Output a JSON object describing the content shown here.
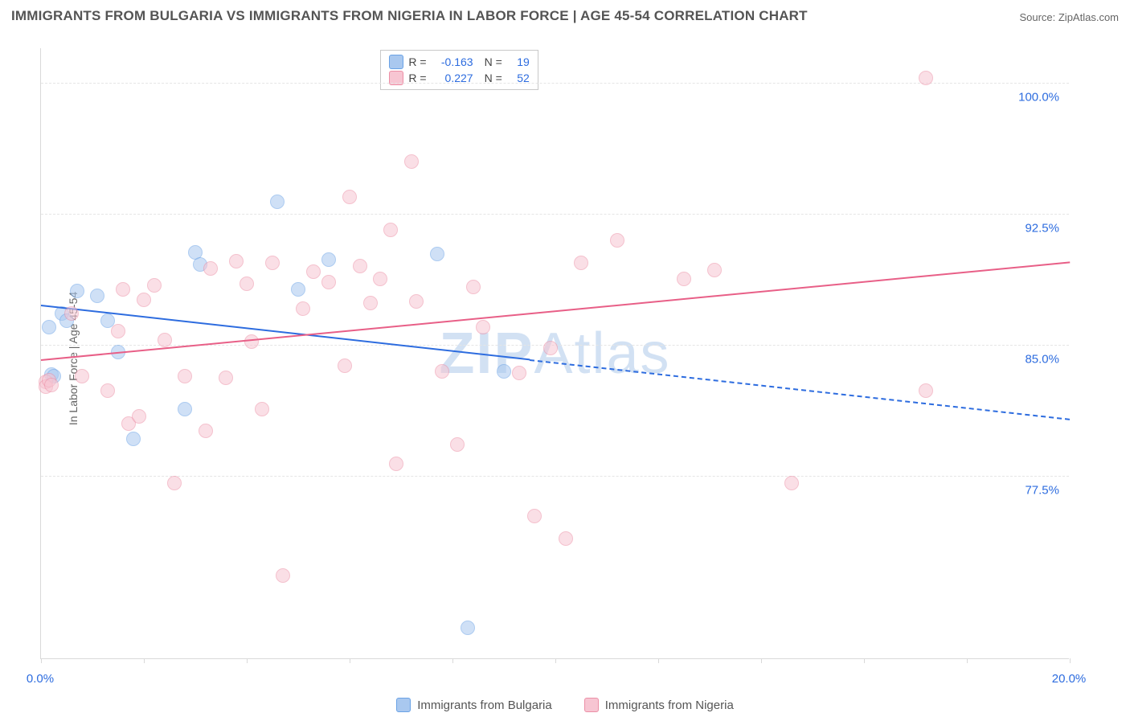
{
  "title": "IMMIGRANTS FROM BULGARIA VS IMMIGRANTS FROM NIGERIA IN LABOR FORCE | AGE 45-54 CORRELATION CHART",
  "source_label": "Source: ZipAtlas.com",
  "y_axis_label": "In Labor Force | Age 45-54",
  "watermark_text": "ZIPAtlas",
  "chart": {
    "type": "scatter",
    "background_color": "#ffffff",
    "grid_color": "#e5e5e5",
    "axis_color": "#d9d9d9",
    "tick_label_color": "#2d6cdf",
    "tick_fontsize": 15,
    "xlim": [
      0.0,
      20.0
    ],
    "ylim": [
      67.0,
      102.0
    ],
    "marker_radius": 9,
    "marker_stroke_width": 1.5,
    "y_gridlines": [
      77.5,
      85.0,
      92.5,
      100.0
    ],
    "y_tick_labels": [
      "77.5%",
      "85.0%",
      "92.5%",
      "100.0%"
    ],
    "x_ticks": [
      0.0,
      2.0,
      4.0,
      6.0,
      8.0,
      10.0,
      12.0,
      14.0,
      16.0,
      18.0,
      20.0
    ],
    "x_tick_labels_shown": {
      "0.0": "0.0%",
      "20.0": "20.0%"
    },
    "series": [
      {
        "id": "bulgaria",
        "label": "Immigrants from Bulgaria",
        "fill_color": "#a9c8ef",
        "stroke_color": "#6aa2e6",
        "fill_opacity": 0.55,
        "reg_color": "#2d6cdf",
        "R": "-0.163",
        "N": "19",
        "regline": {
          "x1": 0.0,
          "y1": 87.3,
          "x2": 9.5,
          "y2": 84.2,
          "dashed_to_x": 20.0,
          "dashed_to_y": 80.8
        },
        "points": [
          {
            "x": 0.15,
            "y": 86.0
          },
          {
            "x": 0.2,
            "y": 83.3
          },
          {
            "x": 0.25,
            "y": 83.2
          },
          {
            "x": 0.4,
            "y": 86.8
          },
          {
            "x": 0.5,
            "y": 86.4
          },
          {
            "x": 0.7,
            "y": 88.1
          },
          {
            "x": 1.1,
            "y": 87.8
          },
          {
            "x": 1.3,
            "y": 86.4
          },
          {
            "x": 1.5,
            "y": 84.6
          },
          {
            "x": 1.8,
            "y": 79.6
          },
          {
            "x": 2.8,
            "y": 81.3
          },
          {
            "x": 3.0,
            "y": 90.3
          },
          {
            "x": 3.1,
            "y": 89.6
          },
          {
            "x": 4.6,
            "y": 93.2
          },
          {
            "x": 5.0,
            "y": 88.2
          },
          {
            "x": 5.6,
            "y": 89.9
          },
          {
            "x": 7.7,
            "y": 90.2
          },
          {
            "x": 8.3,
            "y": 68.8
          },
          {
            "x": 9.0,
            "y": 83.5
          }
        ]
      },
      {
        "id": "nigeria",
        "label": "Immigrants from Nigeria",
        "fill_color": "#f7c5d2",
        "stroke_color": "#ec8fa6",
        "fill_opacity": 0.55,
        "reg_color": "#e85f87",
        "R": "0.227",
        "N": "52",
        "regline": {
          "x1": 0.0,
          "y1": 84.2,
          "x2": 20.0,
          "y2": 89.8,
          "dashed_to_x": null,
          "dashed_to_y": null
        },
        "points": [
          {
            "x": 0.1,
            "y": 82.9
          },
          {
            "x": 0.1,
            "y": 82.6
          },
          {
            "x": 0.15,
            "y": 83.0
          },
          {
            "x": 0.2,
            "y": 82.7
          },
          {
            "x": 0.6,
            "y": 86.8
          },
          {
            "x": 0.8,
            "y": 83.2
          },
          {
            "x": 1.3,
            "y": 82.4
          },
          {
            "x": 1.5,
            "y": 85.8
          },
          {
            "x": 1.6,
            "y": 88.2
          },
          {
            "x": 1.7,
            "y": 80.5
          },
          {
            "x": 1.9,
            "y": 80.9
          },
          {
            "x": 2.0,
            "y": 87.6
          },
          {
            "x": 2.2,
            "y": 88.4
          },
          {
            "x": 2.4,
            "y": 85.3
          },
          {
            "x": 2.6,
            "y": 77.1
          },
          {
            "x": 2.8,
            "y": 83.2
          },
          {
            "x": 3.2,
            "y": 80.1
          },
          {
            "x": 3.3,
            "y": 89.4
          },
          {
            "x": 3.6,
            "y": 83.1
          },
          {
            "x": 3.8,
            "y": 89.8
          },
          {
            "x": 4.0,
            "y": 88.5
          },
          {
            "x": 4.1,
            "y": 85.2
          },
          {
            "x": 4.3,
            "y": 81.3
          },
          {
            "x": 4.5,
            "y": 89.7
          },
          {
            "x": 4.7,
            "y": 71.8
          },
          {
            "x": 5.1,
            "y": 87.1
          },
          {
            "x": 5.3,
            "y": 89.2
          },
          {
            "x": 5.6,
            "y": 88.6
          },
          {
            "x": 5.9,
            "y": 83.8
          },
          {
            "x": 6.0,
            "y": 93.5
          },
          {
            "x": 6.2,
            "y": 89.5
          },
          {
            "x": 6.4,
            "y": 87.4
          },
          {
            "x": 6.6,
            "y": 88.8
          },
          {
            "x": 6.8,
            "y": 91.6
          },
          {
            "x": 6.9,
            "y": 78.2
          },
          {
            "x": 7.2,
            "y": 95.5
          },
          {
            "x": 7.3,
            "y": 87.5
          },
          {
            "x": 7.8,
            "y": 83.5
          },
          {
            "x": 8.1,
            "y": 79.3
          },
          {
            "x": 8.4,
            "y": 88.3
          },
          {
            "x": 8.6,
            "y": 86.0
          },
          {
            "x": 9.3,
            "y": 83.4
          },
          {
            "x": 9.6,
            "y": 75.2
          },
          {
            "x": 9.9,
            "y": 84.8
          },
          {
            "x": 10.2,
            "y": 73.9
          },
          {
            "x": 10.5,
            "y": 89.7
          },
          {
            "x": 11.2,
            "y": 91.0
          },
          {
            "x": 12.5,
            "y": 88.8
          },
          {
            "x": 13.1,
            "y": 89.3
          },
          {
            "x": 14.6,
            "y": 77.1
          },
          {
            "x": 17.2,
            "y": 100.3
          },
          {
            "x": 17.2,
            "y": 82.4
          }
        ]
      }
    ],
    "legend_box": {
      "border_color": "#c9c9c9",
      "label_color": "#444444",
      "value_color": "#2d6cdf"
    }
  },
  "bottom_legend": {
    "items": [
      {
        "label": "Immigrants from Bulgaria",
        "fill": "#a9c8ef",
        "stroke": "#6aa2e6"
      },
      {
        "label": "Immigrants from Nigeria",
        "fill": "#f7c5d2",
        "stroke": "#ec8fa6"
      }
    ]
  }
}
